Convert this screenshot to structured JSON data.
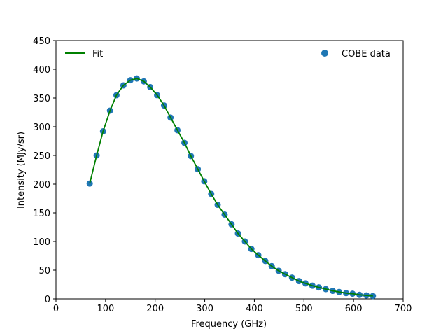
{
  "chart_data": {
    "type": "scatter",
    "title": "",
    "xlabel": "Frequency (GHz)",
    "ylabel": "Intensity (MJy/sr)",
    "xlim": [
      0,
      700
    ],
    "ylim": [
      0,
      450
    ],
    "xticks": [
      "0",
      "100",
      "200",
      "300",
      "400",
      "500",
      "600",
      "700"
    ],
    "yticks": [
      "0",
      "50",
      "100",
      "150",
      "200",
      "250",
      "300",
      "350",
      "400",
      "450"
    ],
    "grid": false,
    "legend": {
      "left": "upper-left",
      "right": "upper-right"
    },
    "series": [
      {
        "name": "COBE data",
        "kind": "scatter",
        "color": "#1f77b4",
        "x": [
          68,
          82,
          95,
          109,
          122,
          136,
          150,
          163,
          177,
          190,
          204,
          218,
          231,
          245,
          259,
          272,
          286,
          299,
          313,
          326,
          340,
          354,
          367,
          381,
          394,
          408,
          422,
          435,
          449,
          462,
          476,
          490,
          503,
          517,
          530,
          544,
          558,
          571,
          585,
          598,
          612,
          626,
          639
        ],
        "y": [
          201,
          250,
          292,
          328,
          355,
          372,
          381,
          384,
          379,
          369,
          355,
          337,
          316,
          294,
          272,
          249,
          226,
          205,
          183,
          164,
          147,
          130,
          114,
          100,
          87,
          76,
          66,
          57,
          49,
          43,
          37,
          31,
          27,
          23,
          20,
          17,
          14,
          12,
          10,
          9,
          7,
          6,
          5
        ]
      },
      {
        "name": "Fit",
        "kind": "line",
        "color": "#008000",
        "x": [
          68,
          82,
          95,
          109,
          122,
          136,
          150,
          163,
          177,
          190,
          204,
          218,
          231,
          245,
          259,
          272,
          286,
          299,
          313,
          326,
          340,
          354,
          367,
          381,
          394,
          408,
          422,
          435,
          449,
          462,
          476,
          490,
          503,
          517,
          530,
          544,
          558,
          571,
          585,
          598,
          612,
          626,
          639
        ],
        "y": [
          201,
          250,
          292,
          328,
          355,
          372,
          381,
          384,
          379,
          369,
          355,
          337,
          316,
          294,
          272,
          249,
          226,
          205,
          183,
          164,
          147,
          130,
          114,
          100,
          87,
          76,
          66,
          57,
          49,
          43,
          37,
          31,
          27,
          23,
          20,
          17,
          14,
          12,
          10,
          9,
          7,
          6,
          5
        ]
      }
    ]
  }
}
